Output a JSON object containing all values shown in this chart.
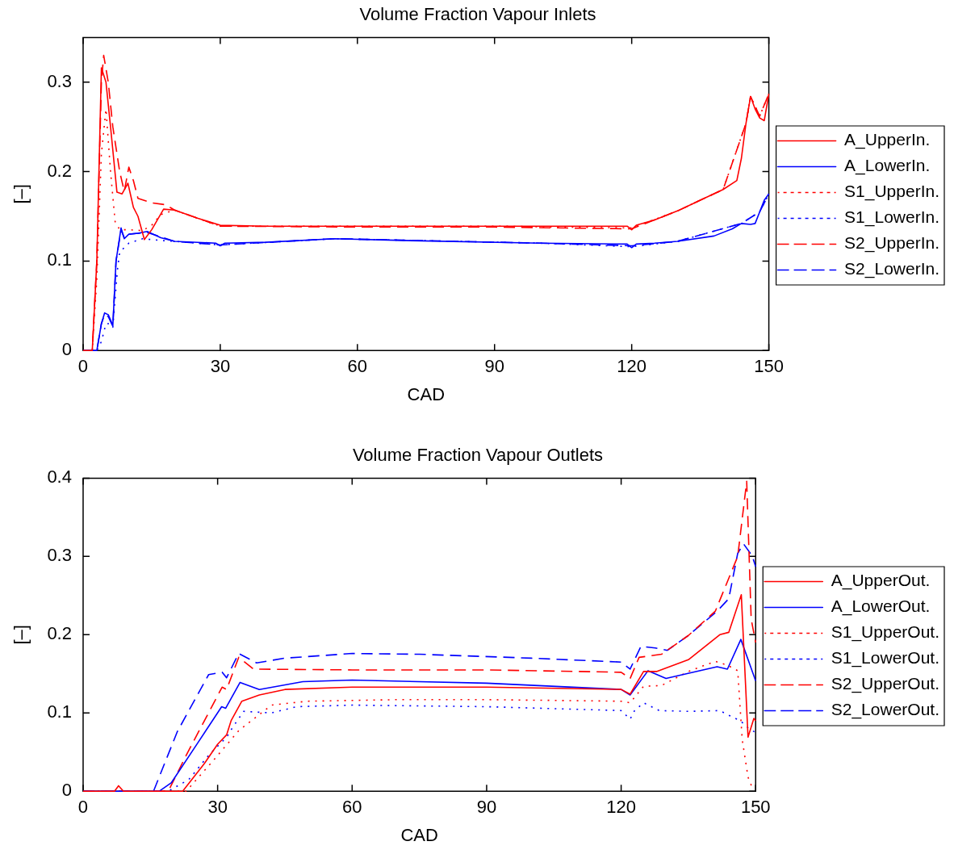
{
  "chart_data": [
    {
      "type": "line",
      "title": "Volume Fraction Vapour Inlets",
      "xlabel": "CAD",
      "ylabel": "[–]",
      "xlim": [
        0,
        150
      ],
      "xticks": [
        0,
        30,
        60,
        90,
        120,
        150
      ],
      "ylim": [
        0,
        0.35
      ],
      "yticks": [
        0,
        0.1,
        0.2,
        0.3
      ],
      "legend": "right",
      "marker": "none",
      "grid": false,
      "series": [
        {
          "name": "A_UpperIn.",
          "color": "#ff0000",
          "line_style": "solid",
          "x": [
            0,
            2,
            3,
            4,
            5,
            6,
            7.4,
            8.5,
            9.8,
            11,
            12,
            13.4,
            15,
            17.6,
            20,
            25,
            30,
            40,
            60,
            90,
            119,
            120,
            121,
            125,
            130,
            135,
            140,
            143,
            144,
            145,
            146,
            147,
            148,
            149,
            150
          ],
          "values": [
            0,
            0,
            0.1,
            0.316,
            0.3,
            0.25,
            0.177,
            0.175,
            0.187,
            0.16,
            0.15,
            0.124,
            0.135,
            0.158,
            0.157,
            0.148,
            0.14,
            0.139,
            0.139,
            0.139,
            0.139,
            0.135,
            0.14,
            0.146,
            0.156,
            0.168,
            0.18,
            0.19,
            0.215,
            0.254,
            0.284,
            0.27,
            0.26,
            0.257,
            0.287
          ]
        },
        {
          "name": "A_LowerIn.",
          "color": "#0000ff",
          "line_style": "solid",
          "x": [
            0,
            3,
            4,
            4.7,
            5.5,
            6.5,
            7.2,
            8.3,
            9,
            10,
            12,
            14,
            17,
            20,
            29,
            30,
            31,
            40,
            55,
            70,
            100,
            119,
            120,
            121,
            125,
            130,
            138,
            142,
            144,
            146,
            147,
            148,
            149,
            150
          ],
          "values": [
            0,
            0,
            0.03,
            0.042,
            0.04,
            0.028,
            0.1,
            0.137,
            0.125,
            0.13,
            0.131,
            0.133,
            0.126,
            0.122,
            0.12,
            0.117,
            0.12,
            0.121,
            0.125,
            0.123,
            0.12,
            0.119,
            0.115,
            0.119,
            0.12,
            0.122,
            0.128,
            0.136,
            0.142,
            0.141,
            0.142,
            0.155,
            0.168,
            0.175
          ]
        },
        {
          "name": "S1_UpperIn.",
          "color": "#ff0000",
          "line_style": "dotted",
          "x": [
            0,
            2,
            3,
            4,
            5,
            6,
            7,
            8,
            10,
            13,
            15,
            17,
            20,
            30,
            60,
            90,
            120,
            130,
            140,
            145,
            146,
            148,
            150
          ],
          "values": [
            0,
            0,
            0.08,
            0.22,
            0.27,
            0.2,
            0.144,
            0.135,
            0.135,
            0.134,
            0.14,
            0.152,
            0.157,
            0.139,
            0.139,
            0.139,
            0.137,
            0.156,
            0.18,
            0.254,
            0.284,
            0.262,
            0.287
          ]
        },
        {
          "name": "S1_LowerIn.",
          "color": "#0000ff",
          "line_style": "dotted",
          "x": [
            0,
            3,
            4,
            5,
            6,
            6.5,
            7.5,
            8,
            10,
            13,
            17,
            20,
            30,
            55,
            100,
            120,
            130,
            144,
            148,
            150
          ],
          "values": [
            0,
            0,
            0.01,
            0.03,
            0.03,
            0.026,
            0.09,
            0.11,
            0.12,
            0.125,
            0.123,
            0.122,
            0.118,
            0.125,
            0.12,
            0.116,
            0.122,
            0.142,
            0.155,
            0.175
          ]
        },
        {
          "name": "S2_UpperIn.",
          "color": "#ff0000",
          "line_style": "dashed",
          "x": [
            0,
            2,
            3,
            4,
            4.5,
            5.5,
            6.5,
            8,
            9,
            10,
            11,
            12,
            15,
            18,
            20,
            30,
            60,
            90,
            120,
            130,
            140,
            145,
            146,
            148,
            150
          ],
          "values": [
            0,
            0,
            0.1,
            0.3,
            0.33,
            0.3,
            0.25,
            0.2,
            0.178,
            0.205,
            0.19,
            0.17,
            0.165,
            0.163,
            0.157,
            0.139,
            0.138,
            0.138,
            0.136,
            0.156,
            0.18,
            0.254,
            0.284,
            0.262,
            0.287
          ]
        },
        {
          "name": "S2_LowerIn.",
          "color": "#0000ff",
          "line_style": "dashed",
          "x": [
            0,
            3,
            4,
            4.7,
            5.5,
            6.5,
            7.2,
            8.3,
            9,
            10,
            14,
            20,
            30,
            55,
            100,
            120,
            130,
            144,
            148,
            150
          ],
          "values": [
            0,
            0,
            0.03,
            0.04,
            0.038,
            0.027,
            0.1,
            0.135,
            0.126,
            0.13,
            0.132,
            0.122,
            0.118,
            0.125,
            0.12,
            0.117,
            0.122,
            0.142,
            0.155,
            0.175
          ]
        }
      ]
    },
    {
      "type": "line",
      "title": "Volume Fraction Vapour Outlets",
      "xlabel": "CAD",
      "ylabel": "[–]",
      "xlim": [
        0,
        150
      ],
      "xticks": [
        0,
        30,
        60,
        90,
        120,
        150
      ],
      "ylim": [
        0,
        0.4
      ],
      "yticks": [
        0,
        0.1,
        0.2,
        0.3,
        0.4
      ],
      "legend": "right",
      "marker": "none",
      "grid": false,
      "series": [
        {
          "name": "A_UpperOut.",
          "color": "#ff0000",
          "line_style": "solid",
          "x": [
            0,
            7,
            7.9,
            9,
            22.2,
            27,
            30,
            32,
            33,
            35.4,
            39.3,
            45,
            60,
            90,
            120,
            122,
            125,
            128,
            135,
            142,
            144,
            146.8,
            148.3,
            149.6,
            150
          ],
          "values": [
            0,
            0,
            0.007,
            0,
            0,
            0.035,
            0.06,
            0.072,
            0.09,
            0.115,
            0.123,
            0.13,
            0.133,
            0.133,
            0.13,
            0.124,
            0.153,
            0.153,
            0.168,
            0.2,
            0.203,
            0.251,
            0.069,
            0.093,
            0.09
          ]
        },
        {
          "name": "A_LowerOut.",
          "color": "#0000ff",
          "line_style": "solid",
          "x": [
            0,
            17,
            19.7,
            25.6,
            30.9,
            31.8,
            35,
            39.3,
            49,
            60,
            90,
            120,
            122,
            126,
            130,
            141.4,
            143.7,
            146.7,
            150
          ],
          "values": [
            0,
            0,
            0.011,
            0.062,
            0.108,
            0.106,
            0.139,
            0.13,
            0.14,
            0.142,
            0.138,
            0.13,
            0.123,
            0.154,
            0.144,
            0.159,
            0.156,
            0.194,
            0.141
          ]
        },
        {
          "name": "S1_UpperOut.",
          "color": "#ff0000",
          "line_style": "dotted",
          "x": [
            0,
            23,
            29,
            34.8,
            42,
            50,
            70,
            90,
            120,
            122,
            125,
            129,
            135,
            141,
            143.7,
            146,
            147,
            148.3,
            149,
            150
          ],
          "values": [
            0,
            0,
            0.039,
            0.078,
            0.11,
            0.115,
            0.117,
            0.117,
            0.115,
            0.113,
            0.134,
            0.135,
            0.153,
            0.166,
            0.161,
            0.154,
            0.066,
            0.018,
            0.008,
            0.005
          ]
        },
        {
          "name": "S1_LowerOut.",
          "color": "#0000ff",
          "line_style": "dotted",
          "x": [
            0,
            19,
            23.6,
            28,
            32,
            33.4,
            35.8,
            42,
            47.6,
            60,
            90,
            120,
            122,
            123,
            125,
            128.5,
            135,
            142,
            144,
            146.6,
            148.5,
            150
          ],
          "values": [
            0,
            0,
            0.015,
            0.046,
            0.069,
            0.082,
            0.102,
            0.1,
            0.108,
            0.11,
            0.108,
            0.103,
            0.092,
            0.103,
            0.113,
            0.103,
            0.102,
            0.103,
            0.097,
            0.09,
            0.08,
            0.075
          ]
        },
        {
          "name": "S2_UpperOut.",
          "color": "#ff0000",
          "line_style": "dashed",
          "x": [
            0,
            19,
            23,
            31,
            32,
            34.7,
            38,
            60,
            90,
            120,
            122,
            124,
            129,
            135,
            141,
            146,
            148,
            149,
            150
          ],
          "values": [
            0,
            0,
            0.046,
            0.133,
            0.13,
            0.171,
            0.156,
            0.155,
            0.155,
            0.152,
            0.144,
            0.171,
            0.175,
            0.199,
            0.23,
            0.3,
            0.396,
            0.22,
            0.19
          ]
        },
        {
          "name": "S2_LowerOut.",
          "color": "#0000ff",
          "line_style": "dashed",
          "x": [
            0,
            15.7,
            21,
            28,
            31,
            32,
            34.7,
            38.7,
            45,
            60,
            75,
            100,
            120,
            122,
            124.4,
            127.6,
            130.3,
            135,
            141.4,
            144,
            146,
            147.3,
            149.2,
            150
          ],
          "values": [
            0,
            0,
            0.076,
            0.149,
            0.152,
            0.145,
            0.176,
            0.164,
            0.17,
            0.176,
            0.175,
            0.17,
            0.165,
            0.156,
            0.185,
            0.183,
            0.18,
            0.199,
            0.23,
            0.246,
            0.304,
            0.316,
            0.301,
            0.287
          ]
        }
      ]
    }
  ]
}
